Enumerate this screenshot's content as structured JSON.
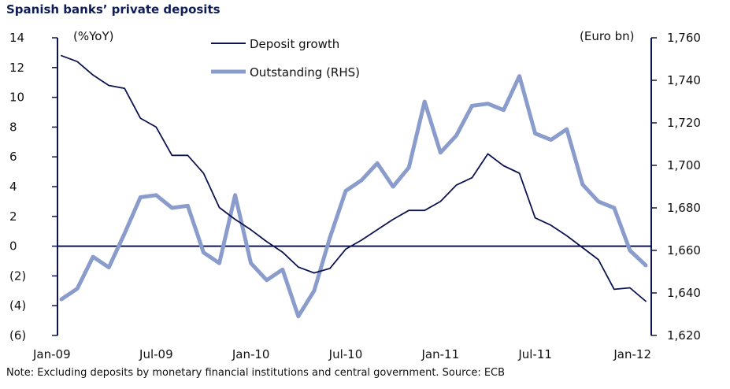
{
  "title": "Spanish banks’ private deposits",
  "note": "Note: Excluding deposits by monetary financial institutions and central government. Source: ECB",
  "chart_data": {
    "type": "line",
    "left_unit": "(%YoY)",
    "right_unit": "(Euro bn)",
    "left_axis": {
      "ylim": [
        -6,
        14
      ],
      "ticks": [
        "14",
        "12",
        "10",
        "8",
        "6",
        "4",
        "2",
        "0",
        "(2)",
        "(4)",
        "(6)"
      ],
      "tick_values": [
        14,
        12,
        10,
        8,
        6,
        4,
        2,
        0,
        -2,
        -4,
        -6
      ]
    },
    "right_axis": {
      "ylim": [
        1620,
        1760
      ],
      "ticks": [
        "1,760",
        "1,740",
        "1,720",
        "1,700",
        "1,680",
        "1,660",
        "1,640",
        "1,620"
      ],
      "tick_values": [
        1760,
        1740,
        1720,
        1700,
        1680,
        1660,
        1640,
        1620
      ]
    },
    "x_tick_labels": [
      "Jan-09",
      "Jul-09",
      "Jan-10",
      "Jul-10",
      "Jan-11",
      "Jul-11",
      "Jan-12"
    ],
    "x_tick_index": [
      0,
      6,
      12,
      18,
      24,
      30,
      36
    ],
    "months": [
      "Jan-09",
      "Feb-09",
      "Mar-09",
      "Apr-09",
      "May-09",
      "Jun-09",
      "Jul-09",
      "Aug-09",
      "Sep-09",
      "Oct-09",
      "Nov-09",
      "Dec-09",
      "Jan-10",
      "Feb-10",
      "Mar-10",
      "Apr-10",
      "May-10",
      "Jun-10",
      "Jul-10",
      "Aug-10",
      "Sep-10",
      "Oct-10",
      "Nov-10",
      "Dec-10",
      "Jan-11",
      "Feb-11",
      "Mar-11",
      "Apr-11",
      "May-11",
      "Jun-11",
      "Jul-11",
      "Aug-11",
      "Sep-11",
      "Oct-11",
      "Nov-11",
      "Dec-11",
      "Jan-12",
      "Feb-12"
    ],
    "series": [
      {
        "name": "Deposit growth",
        "axis": "left",
        "color": "#0d1450",
        "values": [
          12.8,
          12.4,
          11.5,
          10.8,
          10.6,
          8.6,
          8.0,
          6.1,
          6.1,
          4.9,
          2.6,
          1.8,
          1.1,
          0.3,
          -0.4,
          -1.4,
          -1.8,
          -1.5,
          -0.2,
          0.4,
          1.1,
          1.8,
          2.4,
          2.4,
          3.0,
          4.1,
          4.6,
          6.2,
          5.4,
          4.9,
          1.9,
          1.4,
          0.7,
          -0.1,
          -0.9,
          -2.9,
          -2.8,
          -3.7
        ]
      },
      {
        "name": "Outstanding (RHS)",
        "axis": "right",
        "color": "#8a9ccb",
        "values": [
          1637,
          1642,
          1657,
          1652,
          1668,
          1685,
          1686,
          1680,
          1681,
          1659,
          1654,
          1686,
          1654,
          1646,
          1651,
          1629,
          1641,
          1666,
          1688,
          1693,
          1701,
          1690,
          1699,
          1730,
          1706,
          1714,
          1728,
          1729,
          1726,
          1742,
          1715,
          1712,
          1717,
          1691,
          1683,
          1680,
          1660,
          1653
        ]
      }
    ],
    "zero_line": true,
    "legend": "top-center",
    "grid": false
  }
}
